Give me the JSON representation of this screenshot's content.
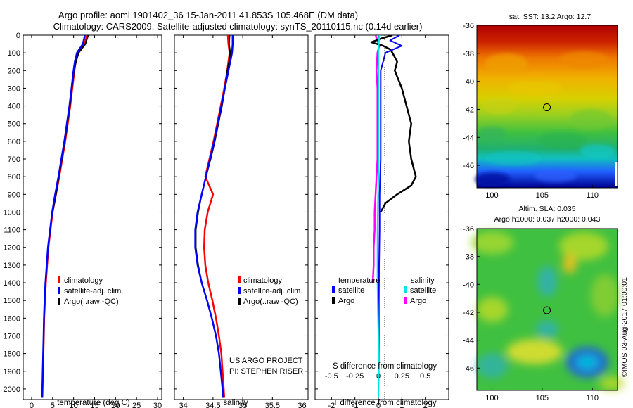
{
  "header": {
    "title_line1": "Argo profile: aoml 1901402_36 15-Jan-2011 41.853S 105.468E (DM data)",
    "title_line2": "Climatology: CARS2009. Satellite-adjusted climatology: synTS_20110115.nc (0.14d earlier)"
  },
  "colors": {
    "climatology": "#ff0000",
    "satellite": "#0000ff",
    "argo": "#000000",
    "sal_satellite": "#00e5e5",
    "sal_argo": "#ff00ff"
  },
  "chart_data": [
    {
      "type": "line",
      "name": "temperature-profile",
      "xlabel": "temperature (deg C)",
      "ylabel": "",
      "xlim": [
        -2,
        31
      ],
      "ylim": [
        2060,
        0
      ],
      "xticks": [
        "0",
        "5",
        "10",
        "15",
        "20",
        "25",
        "30"
      ],
      "yticks": [
        "0",
        "100",
        "200",
        "300",
        "400",
        "500",
        "600",
        "700",
        "800",
        "900",
        "1000",
        "1100",
        "1200",
        "1300",
        "1400",
        "1500",
        "1600",
        "1700",
        "1800",
        "1900",
        "2000"
      ],
      "legend": [
        "climatology",
        "satellite-adj. clim.",
        "Argo(..raw -QC)"
      ],
      "series": [
        {
          "name": "climatology",
          "depth": [
            0,
            50,
            100,
            150,
            200,
            300,
            400,
            500,
            600,
            700,
            800,
            900,
            1000,
            1100,
            1200,
            1300,
            1400,
            1500,
            1600,
            1700,
            1800,
            1900,
            2000,
            2050
          ],
          "values": [
            13.2,
            12.6,
            11.0,
            10.5,
            10.2,
            9.7,
            9.2,
            8.6,
            8.0,
            7.3,
            6.6,
            5.8,
            5.0,
            4.5,
            4.0,
            3.7,
            3.4,
            3.2,
            3.0,
            2.9,
            2.8,
            2.7,
            2.6,
            2.55
          ]
        },
        {
          "name": "satellite-adj. clim.",
          "depth": [
            0,
            50,
            100,
            150,
            200,
            300,
            400,
            500,
            600,
            700,
            800,
            900,
            1000,
            1100,
            1200,
            1300,
            1400,
            1500,
            1600,
            1700,
            1800,
            1900,
            2000,
            2050
          ],
          "values": [
            12.7,
            12.2,
            10.8,
            10.3,
            10.0,
            9.5,
            9.0,
            8.4,
            7.8,
            7.1,
            6.4,
            5.6,
            4.9,
            4.4,
            3.9,
            3.6,
            3.3,
            3.1,
            2.95,
            2.85,
            2.75,
            2.65,
            2.55,
            2.5
          ]
        },
        {
          "name": "Argo(..raw -QC)",
          "depth": [
            0,
            50,
            100,
            150,
            200,
            300,
            400,
            500,
            600,
            700,
            800,
            900,
            1000
          ],
          "values": [
            13.5,
            12.8,
            11.2,
            10.6,
            10.1,
            9.6,
            9.1,
            8.5,
            7.9,
            7.2,
            6.5,
            5.8,
            5.0
          ]
        }
      ]
    },
    {
      "type": "line",
      "name": "salinity-profile",
      "xlabel": "salinity",
      "ylabel": "",
      "xlim": [
        33.85,
        36.1
      ],
      "ylim": [
        2060,
        0
      ],
      "xticks": [
        "34",
        "34.5",
        "35",
        "35.5",
        "36"
      ],
      "legend": [
        "climatology",
        "satellite-adj. clim.",
        "Argo(..raw -QC)"
      ],
      "annotation": [
        "US ARGO PROJECT",
        "PI: STEPHEN RISER"
      ],
      "series": [
        {
          "name": "climatology",
          "depth": [
            0,
            50,
            100,
            150,
            200,
            300,
            400,
            500,
            600,
            700,
            800,
            900,
            1000,
            1100,
            1200,
            1300,
            1400,
            1500,
            1600,
            1700,
            1800,
            1900,
            2000,
            2050
          ],
          "values": [
            34.75,
            34.76,
            34.78,
            34.76,
            34.74,
            34.69,
            34.63,
            34.57,
            34.51,
            34.44,
            34.37,
            34.5,
            34.41,
            34.36,
            34.35,
            34.37,
            34.42,
            34.49,
            34.55,
            34.6,
            34.64,
            34.66,
            34.68,
            34.69
          ]
        },
        {
          "name": "satellite-adj. clim.",
          "depth": [
            0,
            50,
            100,
            150,
            200,
            300,
            400,
            500,
            600,
            700,
            800,
            900,
            1000,
            1100,
            1200,
            1300,
            1400,
            1500,
            1600,
            1700,
            1800,
            1900,
            2000,
            2050
          ],
          "values": [
            34.83,
            34.83,
            34.82,
            34.79,
            34.76,
            34.7,
            34.64,
            34.58,
            34.52,
            34.45,
            34.38,
            34.31,
            34.24,
            34.2,
            34.2,
            34.24,
            34.31,
            34.4,
            34.48,
            34.55,
            34.6,
            34.63,
            34.66,
            34.67
          ]
        },
        {
          "name": "Argo(..raw -QC)",
          "depth": [
            0,
            50,
            100,
            150,
            200,
            300,
            400,
            500,
            600,
            700,
            800,
            900,
            1000,
            1100,
            1200,
            1300,
            1400
          ],
          "values": [
            34.78,
            34.77,
            34.79,
            34.77,
            34.74,
            34.7,
            34.65,
            34.59,
            34.53,
            34.46,
            34.38,
            34.31,
            34.25,
            34.21,
            34.21,
            34.25,
            34.31
          ]
        }
      ]
    },
    {
      "type": "line",
      "name": "difference-profile",
      "xlabel": "T difference from climatology",
      "xlabel_top": "S difference from climatology",
      "xlim": [
        -2.7,
        3.0
      ],
      "ylim": [
        2060,
        0
      ],
      "xticks": [
        "-2",
        "-1",
        "0",
        "1",
        "2"
      ],
      "xticks_top": [
        "-0.5",
        "-0.25",
        "0",
        "0.25",
        "0.5"
      ],
      "legend_titles": [
        "temperature",
        "salinity"
      ],
      "legend": [
        "satellite",
        "Argo",
        "satellite",
        "Argo"
      ],
      "series": [
        {
          "name": "temperature satellite",
          "depth": [
            0,
            30,
            60,
            100,
            150,
            200,
            300,
            400,
            500,
            700,
            900,
            1100,
            1300,
            1500,
            1700,
            1900,
            2050
          ],
          "values": [
            0.9,
            0.5,
            1.0,
            0.3,
            0.2,
            0.1,
            0.1,
            0.1,
            0.1,
            0.1,
            0.05,
            0.05,
            0.03,
            0.02,
            0.02,
            0.01,
            0.0
          ]
        },
        {
          "name": "temperature Argo",
          "depth": [
            0,
            20,
            40,
            60,
            80,
            100,
            150,
            200,
            300,
            400,
            500,
            600,
            700,
            800,
            850,
            900,
            950,
            1000
          ],
          "values": [
            0.6,
            0.1,
            -0.3,
            0.2,
            0.5,
            0.6,
            0.8,
            0.7,
            1.0,
            1.2,
            1.4,
            1.3,
            1.4,
            1.6,
            1.4,
            0.8,
            0.3,
            0.1
          ]
        },
        {
          "name": "salinity satellite",
          "depth": [
            0,
            100,
            300,
            500,
            800,
            1100,
            1400,
            1700,
            2050
          ],
          "values": [
            0.01,
            0.0,
            0.0,
            0.0,
            0.0,
            -0.01,
            -0.01,
            0.0,
            0.0
          ]
        },
        {
          "name": "salinity Argo",
          "depth": [
            0,
            60,
            100,
            200,
            300,
            500,
            700,
            900,
            1000,
            1100,
            1200,
            1300,
            1400
          ],
          "values": [
            -0.03,
            0.01,
            -0.01,
            -0.02,
            -0.01,
            -0.01,
            -0.01,
            -0.03,
            -0.04,
            -0.04,
            -0.05,
            -0.05,
            -0.06
          ]
        }
      ]
    },
    {
      "type": "heatmap",
      "name": "sst-map",
      "title": "sat. SST: 13.2  Argo: 12.7",
      "xlim": [
        98.5,
        112.5
      ],
      "ylim": [
        -47.6,
        -36
      ],
      "xticks": [
        "100",
        "105",
        "110"
      ],
      "yticks": [
        "-36",
        "-38",
        "-40",
        "-42",
        "-44",
        "-46"
      ],
      "marker": {
        "lon": 105.468,
        "lat": -41.853
      }
    },
    {
      "type": "heatmap",
      "name": "sla-map",
      "title_line1": "Altim. SLA: 0.035",
      "title_line2": "Argo h1000: 0.037  h2000: 0.043",
      "xlim": [
        98.5,
        112.5
      ],
      "ylim": [
        -47.6,
        -36
      ],
      "xticks": [
        "100",
        "105",
        "110"
      ],
      "yticks": [
        "-36",
        "-38",
        "-40",
        "-42",
        "-44",
        "-46"
      ],
      "marker": {
        "lon": 105.468,
        "lat": -41.853
      }
    }
  ],
  "credit": "©IMOS 03-Aug-2017 01:00:01"
}
